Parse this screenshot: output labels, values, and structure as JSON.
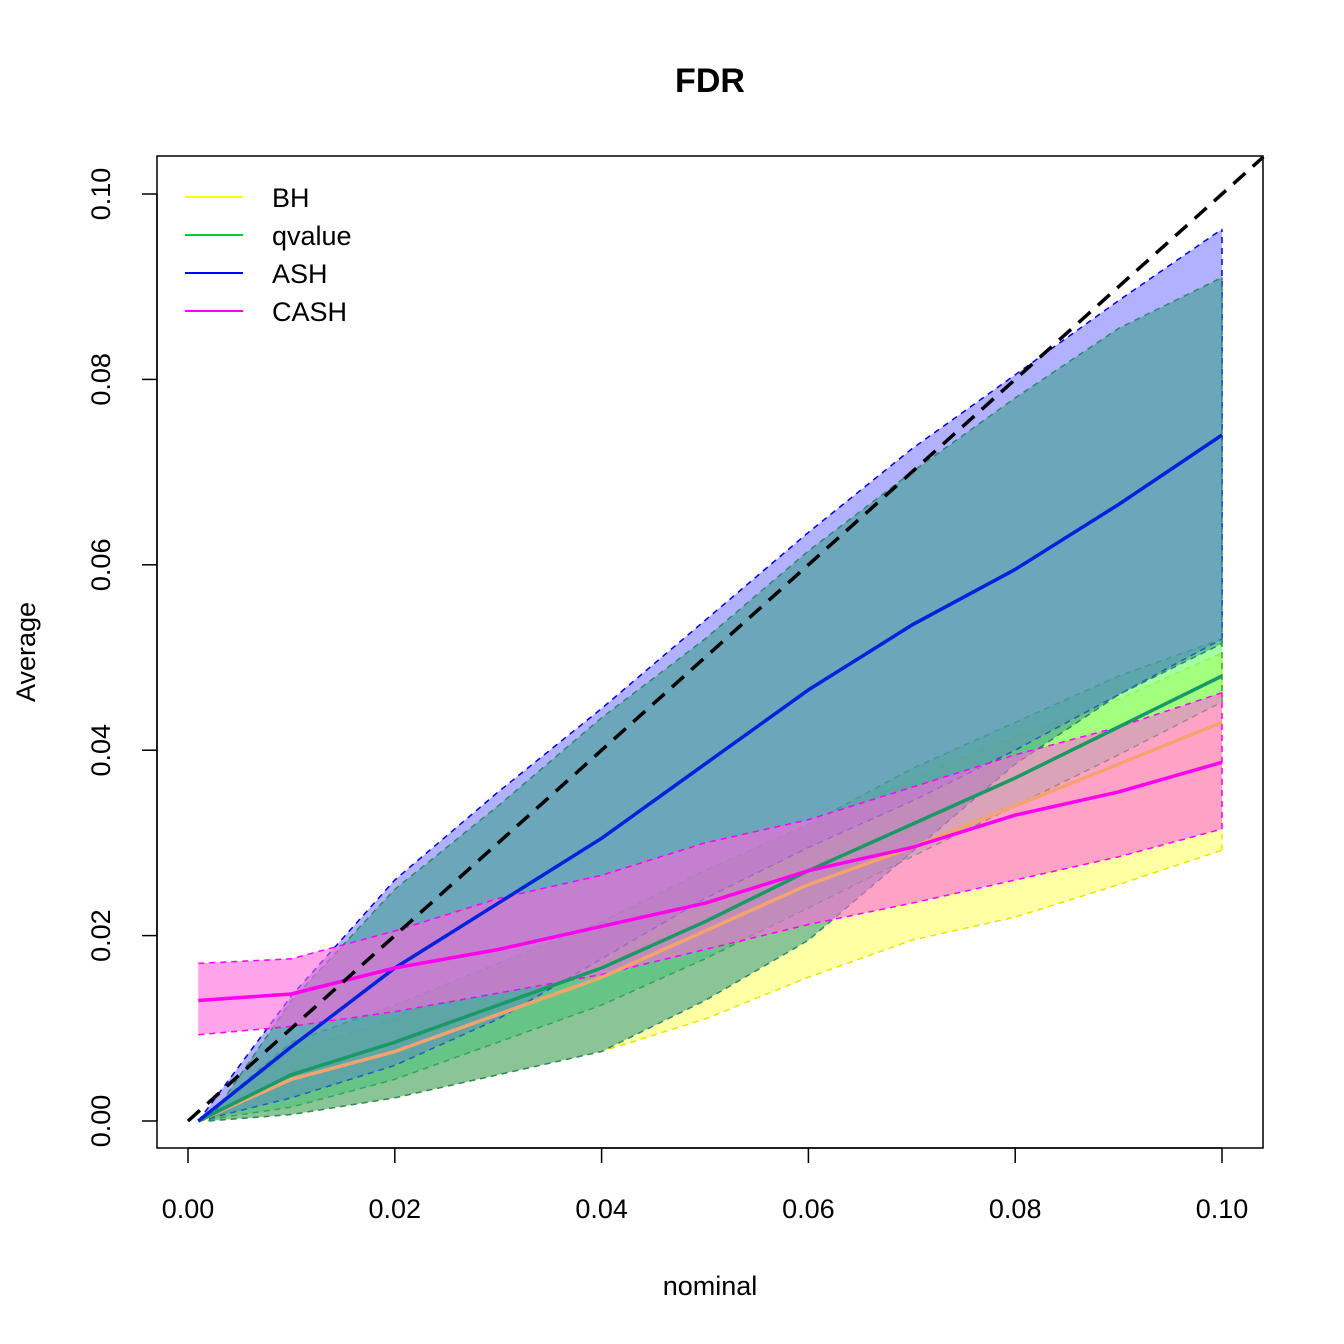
{
  "chart_data": {
    "type": "line",
    "title": "FDR",
    "xlabel": "nominal",
    "ylabel": "Average",
    "xlim": [
      0,
      0.1
    ],
    "ylim": [
      0,
      0.1
    ],
    "x_ticks": [
      "0.00",
      "0.02",
      "0.04",
      "0.06",
      "0.08",
      "0.10"
    ],
    "y_ticks": [
      "0.00",
      "0.02",
      "0.04",
      "0.06",
      "0.08",
      "0.10"
    ],
    "legend_position": "top-left",
    "grid": false,
    "reference_line": {
      "x": [
        0,
        0.104
      ],
      "y": [
        0,
        0.104
      ],
      "style": "dashed",
      "color": "#000000"
    },
    "x": [
      0.001,
      0.01,
      0.02,
      0.03,
      0.04,
      0.05,
      0.06,
      0.07,
      0.08,
      0.09,
      0.1
    ],
    "series": [
      {
        "name": "BH",
        "color": "#ffff00",
        "line_color": "#f5a36e",
        "band_fill": "#ffff66",
        "mean": [
          0.0,
          0.0045,
          0.0075,
          0.0115,
          0.0155,
          0.0205,
          0.0255,
          0.0295,
          0.034,
          0.0385,
          0.043
        ],
        "lower": [
          0.0,
          0.0007,
          0.0025,
          0.005,
          0.0075,
          0.011,
          0.0155,
          0.0195,
          0.022,
          0.0255,
          0.0292
        ],
        "upper": [
          0.0,
          0.0075,
          0.011,
          0.0165,
          0.0215,
          0.0265,
          0.0315,
          0.037,
          0.0415,
          0.0455,
          0.0505
        ]
      },
      {
        "name": "qvalue",
        "color": "#00cc33",
        "line_color": "#1a9966",
        "band_fill": "#66ff66",
        "mean": [
          0.0,
          0.005,
          0.0085,
          0.0125,
          0.0165,
          0.0215,
          0.027,
          0.032,
          0.037,
          0.0425,
          0.048
        ],
        "lower": [
          0.0,
          0.0015,
          0.0045,
          0.0085,
          0.0125,
          0.0175,
          0.023,
          0.0285,
          0.034,
          0.0395,
          0.0452
        ],
        "upper": [
          0.0,
          0.0085,
          0.0125,
          0.017,
          0.0215,
          0.027,
          0.032,
          0.038,
          0.043,
          0.048,
          0.052
        ]
      },
      {
        "name": "ASH",
        "color": "#0000ff",
        "line_color": "#0022dd",
        "band_fill": "#7d7dff",
        "mean": [
          0.0,
          0.008,
          0.0165,
          0.0235,
          0.0305,
          0.0385,
          0.0465,
          0.0535,
          0.0595,
          0.0665,
          0.074
        ],
        "lower": [
          0.0,
          0.0025,
          0.006,
          0.011,
          0.0175,
          0.024,
          0.0295,
          0.0345,
          0.04,
          0.046,
          0.052
        ],
        "upper": [
          0.0,
          0.0135,
          0.026,
          0.0355,
          0.0445,
          0.054,
          0.0635,
          0.0725,
          0.0805,
          0.0885,
          0.0962
        ]
      },
      {
        "name": "CASH",
        "color": "#ff00ff",
        "line_color": "#ff00ee",
        "band_fill": "#ff66dd",
        "mean": [
          0.013,
          0.0137,
          0.0165,
          0.0185,
          0.021,
          0.0235,
          0.027,
          0.0295,
          0.033,
          0.0355,
          0.0387
        ],
        "lower": [
          0.0093,
          0.0102,
          0.0118,
          0.0138,
          0.0158,
          0.0185,
          0.0212,
          0.0235,
          0.026,
          0.0285,
          0.0315
        ],
        "upper": [
          0.017,
          0.0175,
          0.0205,
          0.024,
          0.0265,
          0.03,
          0.0325,
          0.036,
          0.0395,
          0.0425,
          0.0462
        ]
      }
    ],
    "qvalue_wide_band": {
      "x": [
        0.002,
        0.01,
        0.02,
        0.03,
        0.04,
        0.05,
        0.06,
        0.07,
        0.08,
        0.09,
        0.1
      ],
      "lower": [
        0.0,
        0.0007,
        0.0025,
        0.005,
        0.0075,
        0.013,
        0.0195,
        0.029,
        0.0385,
        0.046,
        0.0515
      ],
      "upper": [
        0.0,
        0.013,
        0.025,
        0.034,
        0.0435,
        0.052,
        0.0615,
        0.07,
        0.078,
        0.0855,
        0.091
      ]
    }
  }
}
